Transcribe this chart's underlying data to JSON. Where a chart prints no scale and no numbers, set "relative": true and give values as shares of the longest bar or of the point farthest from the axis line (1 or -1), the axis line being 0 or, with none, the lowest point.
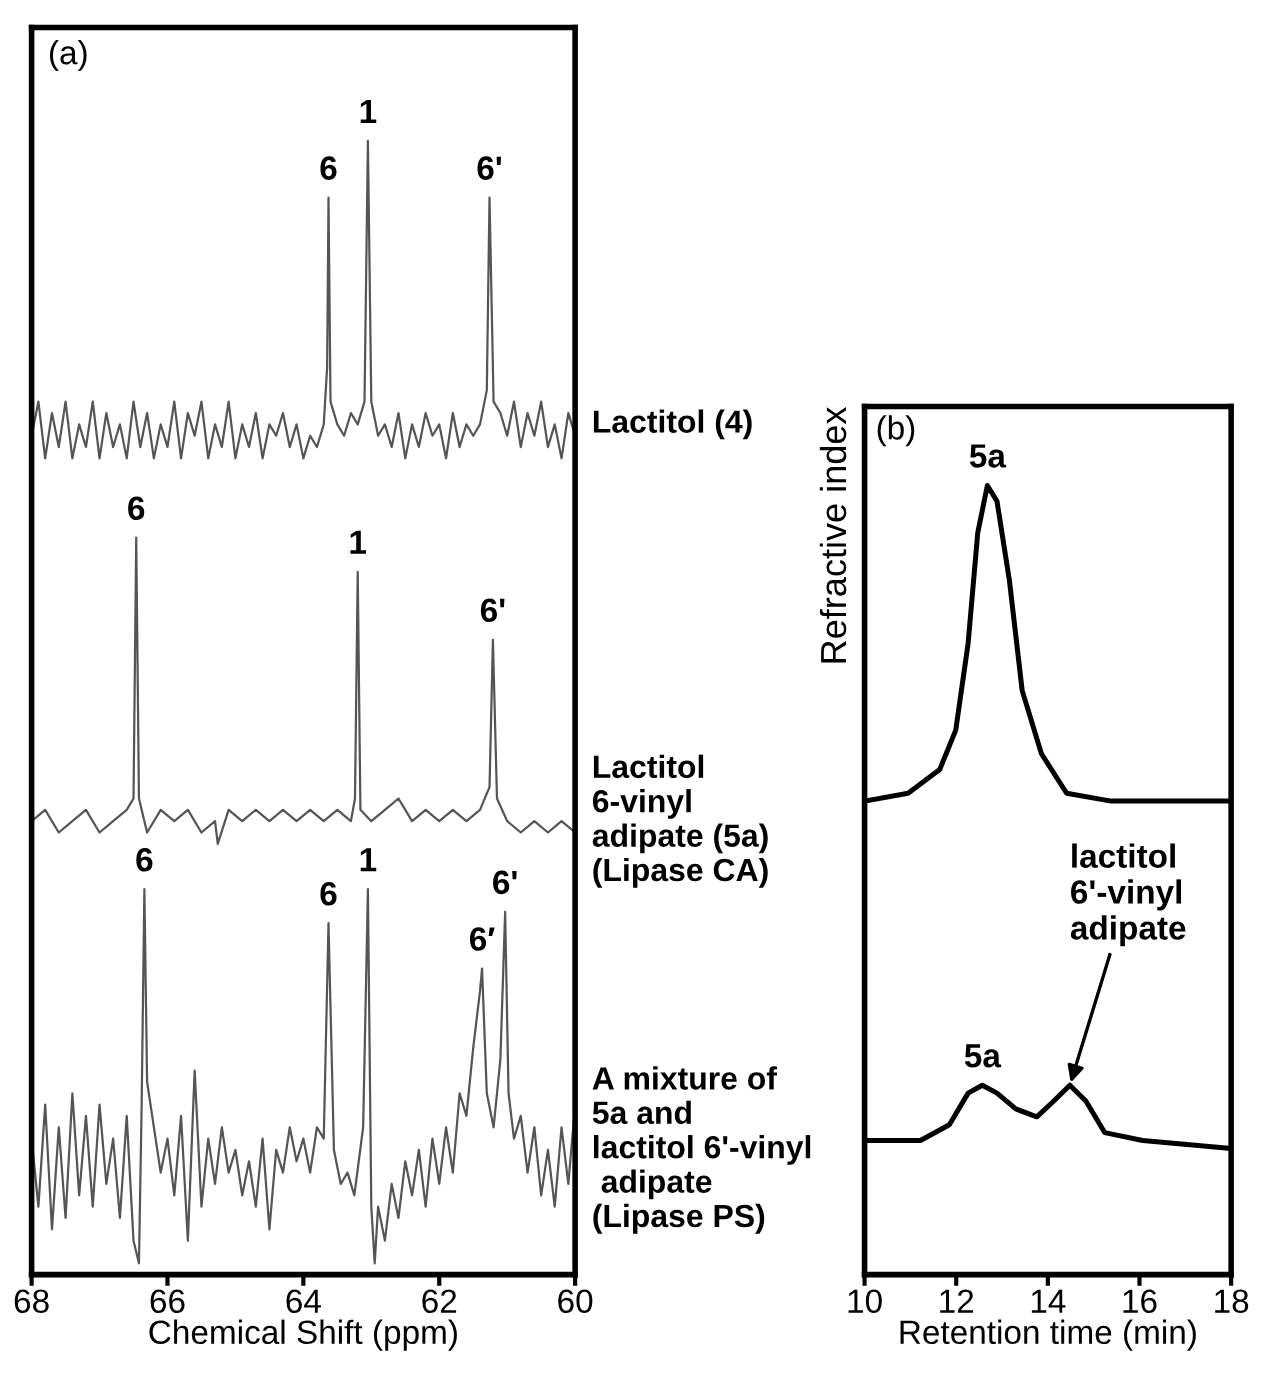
{
  "chart_data": [
    {
      "type": "line",
      "title": "(a)",
      "xlabel": "Chemical Shift (ppm)",
      "relative": true,
      "xlim": [
        68,
        60
      ],
      "xticks": [
        68,
        66,
        64,
        62,
        60
      ],
      "tick_labels": "x",
      "grid": false,
      "legend": false,
      "series": [
        {
          "name": "Lactitol (4)",
          "color": "#555555",
          "x": [
            68.0,
            67.9,
            67.8,
            67.7,
            67.6,
            67.5,
            67.4,
            67.3,
            67.2,
            67.1,
            67.0,
            66.9,
            66.8,
            66.7,
            66.6,
            66.5,
            66.4,
            66.3,
            66.2,
            66.1,
            66.0,
            65.9,
            65.8,
            65.7,
            65.6,
            65.5,
            65.4,
            65.3,
            65.2,
            65.1,
            65.0,
            64.9,
            64.8,
            64.7,
            64.6,
            64.5,
            64.4,
            64.3,
            64.2,
            64.1,
            64.0,
            63.9,
            63.8,
            63.7,
            63.65,
            63.63,
            63.6,
            63.5,
            63.4,
            63.3,
            63.2,
            63.1,
            63.05,
            63.0,
            62.9,
            62.8,
            62.7,
            62.6,
            62.5,
            62.4,
            62.3,
            62.2,
            62.1,
            62.0,
            61.9,
            61.8,
            61.7,
            61.6,
            61.5,
            61.4,
            61.3,
            61.26,
            61.2,
            61.1,
            61.0,
            60.9,
            60.8,
            60.7,
            60.6,
            60.5,
            60.4,
            60.3,
            60.2,
            60.1,
            60.0
          ],
          "values": [
            0.74,
            0.77,
            0.72,
            0.76,
            0.73,
            0.77,
            0.72,
            0.75,
            0.73,
            0.77,
            0.72,
            0.76,
            0.73,
            0.75,
            0.72,
            0.77,
            0.73,
            0.76,
            0.72,
            0.75,
            0.73,
            0.77,
            0.72,
            0.76,
            0.74,
            0.77,
            0.72,
            0.75,
            0.73,
            0.77,
            0.72,
            0.75,
            0.73,
            0.76,
            0.72,
            0.75,
            0.74,
            0.76,
            0.73,
            0.75,
            0.72,
            0.74,
            0.73,
            0.75,
            0.8,
            0.95,
            0.77,
            0.75,
            0.74,
            0.76,
            0.75,
            0.77,
            1.0,
            0.77,
            0.74,
            0.75,
            0.73,
            0.76,
            0.72,
            0.75,
            0.73,
            0.76,
            0.74,
            0.75,
            0.72,
            0.76,
            0.73,
            0.75,
            0.74,
            0.75,
            0.78,
            0.95,
            0.77,
            0.76,
            0.74,
            0.77,
            0.73,
            0.76,
            0.74,
            0.77,
            0.73,
            0.75,
            0.72,
            0.76,
            0.74
          ]
        },
        {
          "name": "Lactitol\n6-vinyl\nadipate (5a)\n(Lipase CA)",
          "color": "#555555",
          "x": [
            68.0,
            67.8,
            67.6,
            67.4,
            67.2,
            67.0,
            66.8,
            66.6,
            66.5,
            66.46,
            66.42,
            66.3,
            66.1,
            65.9,
            65.7,
            65.5,
            65.3,
            65.26,
            65.1,
            64.9,
            64.7,
            64.5,
            64.3,
            64.1,
            63.9,
            63.7,
            63.5,
            63.3,
            63.24,
            63.2,
            63.16,
            63.0,
            62.8,
            62.6,
            62.4,
            62.2,
            62.0,
            61.8,
            61.6,
            61.4,
            61.26,
            61.21,
            61.15,
            61.0,
            60.8,
            60.6,
            60.4,
            60.2,
            60.0
          ],
          "values": [
            0.4,
            0.41,
            0.39,
            0.4,
            0.41,
            0.39,
            0.4,
            0.41,
            0.42,
            0.65,
            0.42,
            0.39,
            0.41,
            0.4,
            0.41,
            0.39,
            0.4,
            0.38,
            0.41,
            0.4,
            0.41,
            0.4,
            0.41,
            0.4,
            0.41,
            0.4,
            0.41,
            0.4,
            0.42,
            0.62,
            0.41,
            0.4,
            0.41,
            0.42,
            0.4,
            0.41,
            0.4,
            0.41,
            0.4,
            0.41,
            0.43,
            0.56,
            0.42,
            0.4,
            0.39,
            0.4,
            0.39,
            0.4,
            0.39
          ]
        },
        {
          "name": "A mixture of\n5a and\nlactitol 6'-vinyl\n adipate\n(Lipase PS)",
          "color": "#555555",
          "x": [
            68.0,
            67.9,
            67.8,
            67.7,
            67.6,
            67.5,
            67.4,
            67.3,
            67.2,
            67.1,
            67.0,
            66.9,
            66.8,
            66.7,
            66.6,
            66.5,
            66.42,
            66.38,
            66.34,
            66.3,
            66.2,
            66.1,
            66.0,
            65.9,
            65.8,
            65.7,
            65.6,
            65.5,
            65.4,
            65.3,
            65.2,
            65.1,
            65.0,
            64.9,
            64.8,
            64.7,
            64.6,
            64.5,
            64.4,
            64.3,
            64.2,
            64.1,
            64.0,
            63.9,
            63.8,
            63.7,
            63.63,
            63.55,
            63.45,
            63.35,
            63.25,
            63.12,
            63.05,
            63.0,
            62.95,
            62.9,
            62.8,
            62.7,
            62.6,
            62.5,
            62.4,
            62.3,
            62.2,
            62.1,
            62.0,
            61.9,
            61.8,
            61.7,
            61.6,
            61.5,
            61.4,
            61.37,
            61.3,
            61.2,
            61.1,
            61.03,
            60.98,
            60.9,
            60.8,
            60.7,
            60.6,
            60.5,
            60.4,
            60.3,
            60.2,
            60.1,
            60.0
          ],
          "values": [
            0.12,
            0.06,
            0.15,
            0.04,
            0.13,
            0.05,
            0.16,
            0.07,
            0.14,
            0.06,
            0.15,
            0.08,
            0.12,
            0.05,
            0.14,
            0.03,
            0.01,
            0.15,
            0.34,
            0.17,
            0.13,
            0.09,
            0.12,
            0.07,
            0.14,
            0.03,
            0.18,
            0.06,
            0.12,
            0.08,
            0.13,
            0.09,
            0.11,
            0.07,
            0.1,
            0.06,
            0.12,
            0.04,
            0.11,
            0.09,
            0.13,
            0.1,
            0.12,
            0.09,
            0.13,
            0.12,
            0.31,
            0.11,
            0.08,
            0.09,
            0.07,
            0.13,
            0.34,
            0.06,
            0.01,
            0.06,
            0.03,
            0.08,
            0.05,
            0.1,
            0.07,
            0.11,
            0.06,
            0.12,
            0.08,
            0.13,
            0.09,
            0.16,
            0.14,
            0.2,
            0.25,
            0.27,
            0.16,
            0.13,
            0.19,
            0.32,
            0.16,
            0.12,
            0.14,
            0.09,
            0.13,
            0.07,
            0.11,
            0.06,
            0.13,
            0.08,
            0.15
          ]
        }
      ],
      "annotations": [
        {
          "text": "6",
          "x": 63.63,
          "y": 0.95
        },
        {
          "text": "1",
          "x": 63.05,
          "y": 1.0
        },
        {
          "text": "6'",
          "x": 61.26,
          "y": 0.95
        },
        {
          "text": "6",
          "x": 66.46,
          "y": 0.65
        },
        {
          "text": "1",
          "x": 63.2,
          "y": 0.62
        },
        {
          "text": "6'",
          "x": 61.21,
          "y": 0.56
        },
        {
          "text": "6",
          "x": 66.34,
          "y": 0.34
        },
        {
          "text": "6",
          "x": 63.63,
          "y": 0.31
        },
        {
          "text": "1",
          "x": 63.05,
          "y": 0.34
        },
        {
          "text": "6′",
          "x": 61.37,
          "y": 0.27
        },
        {
          "text": "6'",
          "x": 61.03,
          "y": 0.32
        }
      ]
    },
    {
      "type": "line",
      "title": "(b)",
      "xlabel": "Retention time (min)",
      "ylabel": "Refractive index",
      "relative": true,
      "xlim": [
        10,
        18
      ],
      "xticks": [
        10,
        12,
        14,
        16,
        18
      ],
      "tick_labels": "x",
      "grid": false,
      "legend": false,
      "series": [
        {
          "color": "#000000",
          "x": [
            10.0,
            10.95,
            11.64,
            11.99,
            12.26,
            12.47,
            12.68,
            12.89,
            13.16,
            13.44,
            13.86,
            14.41,
            15.38,
            16.77,
            17.95
          ],
          "values": [
            0.6,
            0.61,
            0.64,
            0.69,
            0.8,
            0.94,
            1.0,
            0.98,
            0.88,
            0.74,
            0.66,
            0.61,
            0.6,
            0.6,
            0.6
          ]
        },
        {
          "color": "#000000",
          "x": [
            10.0,
            11.22,
            11.85,
            12.26,
            12.57,
            12.89,
            13.3,
            13.76,
            14.13,
            14.48,
            14.83,
            15.24,
            16.07,
            17.95
          ],
          "values": [
            0.17,
            0.17,
            0.19,
            0.23,
            0.24,
            0.23,
            0.21,
            0.2,
            0.22,
            0.24,
            0.22,
            0.18,
            0.17,
            0.16
          ]
        }
      ],
      "annotations": [
        {
          "text": "5a",
          "x": 12.68,
          "y": 1.0
        },
        {
          "text": "5a",
          "x": 12.57,
          "y": 0.24
        },
        {
          "text": "lactitol\n6'-vinyl\nadipate",
          "x": 14.48,
          "y": 0.24
        }
      ]
    }
  ]
}
